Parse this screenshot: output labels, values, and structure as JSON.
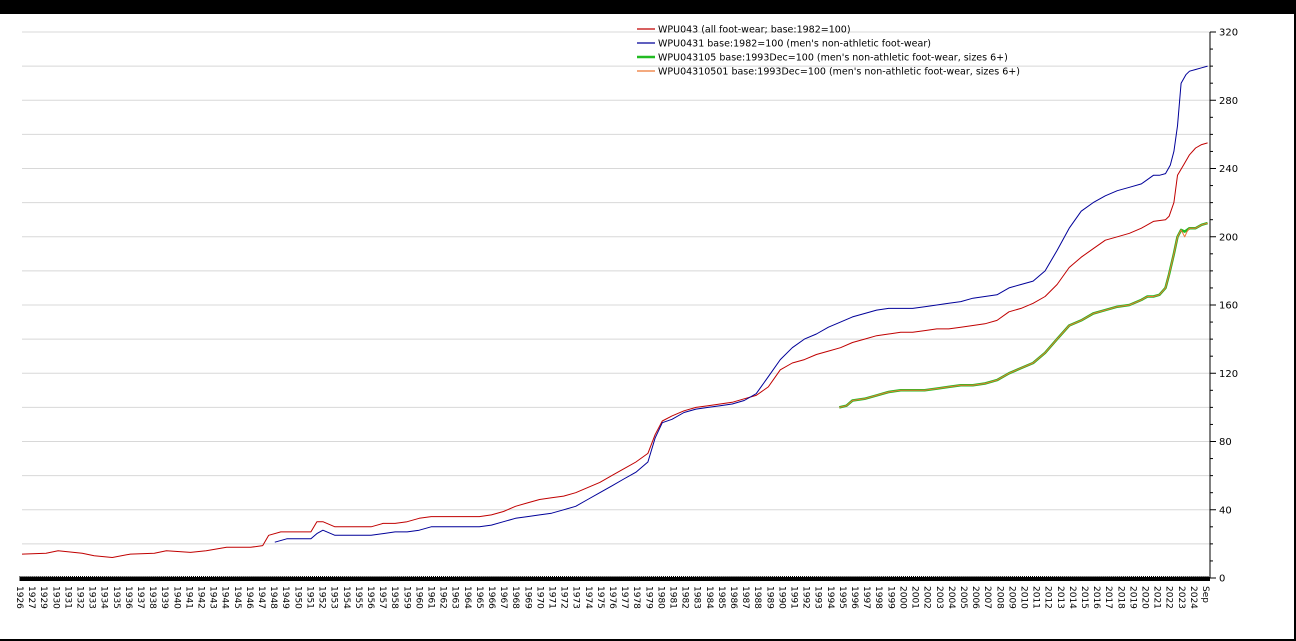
{
  "chart_data": {
    "type": "line",
    "title": "",
    "xlabel": "",
    "ylabel": "",
    "ylim": [
      0,
      320
    ],
    "xlim": [
      1926.0,
      2024.7
    ],
    "grid": true,
    "legend_position": "top-center",
    "y_ticks": [
      0,
      40,
      80,
      120,
      160,
      200,
      240,
      280,
      320
    ],
    "x_tick_labels": [
      "1926",
      "1927",
      "1929",
      "1930",
      "1931",
      "1932",
      "1933",
      "1934",
      "1935",
      "1936",
      "1937",
      "1938",
      "1939",
      "1940",
      "1941",
      "1942",
      "1943",
      "1944",
      "1945",
      "1946",
      "1947",
      "1948",
      "1949",
      "1950",
      "1951",
      "1952",
      "1953",
      "1954",
      "1955",
      "1956",
      "1957",
      "1958",
      "1959",
      "1960",
      "1961",
      "1962",
      "1963",
      "1964",
      "1965",
      "1966",
      "1967",
      "1968",
      "1969",
      "1970",
      "1971",
      "1972",
      "1973",
      "1974",
      "1975",
      "1976",
      "1977",
      "1978",
      "1979",
      "1980",
      "1981",
      "1982",
      "1983",
      "1984",
      "1985",
      "1986",
      "1987",
      "1988",
      "1989",
      "1990",
      "1991",
      "1992",
      "1993",
      "1994",
      "1995",
      "1996",
      "1997",
      "1998",
      "1999",
      "2000",
      "2001",
      "2002",
      "2003",
      "2004",
      "2005",
      "2006",
      "2007",
      "2008",
      "2009",
      "2010",
      "2011",
      "2012",
      "2013",
      "2014",
      "2015",
      "2016",
      "2017",
      "2018",
      "2019",
      "2020",
      "2021",
      "2022",
      "2023",
      "2024",
      "Sep"
    ],
    "series": [
      {
        "name": "WPU043 (all foot-wear; base:1982=100)",
        "color": "#c00000",
        "width": 1,
        "x": [
          1926,
          1928,
          1929,
          1931,
          1932,
          1933.5,
          1935,
          1937,
          1938,
          1940,
          1941.3,
          1943,
          1945,
          1946,
          1946.5,
          1947.5,
          1948,
          1949,
          1950,
          1950.5,
          1951,
          1952,
          1953,
          1954,
          1955,
          1956,
          1957,
          1958,
          1959,
          1960,
          1961,
          1962,
          1963,
          1964,
          1965,
          1966,
          1967,
          1968,
          1969,
          1970,
          1971,
          1972,
          1973,
          1974,
          1975,
          1976,
          1977,
          1978,
          1978.6,
          1979.2,
          1980,
          1981,
          1982,
          1983,
          1984,
          1985,
          1986,
          1987,
          1988,
          1989,
          1990,
          1991,
          1992,
          1993,
          1994,
          1995,
          1996,
          1997,
          1998,
          1999,
          2000,
          2001,
          2002,
          2003,
          2004,
          2005,
          2006,
          2007,
          2008,
          2009,
          2010,
          2011,
          2012,
          2013,
          2014,
          2015,
          2016,
          2017,
          2018,
          2019,
          2020,
          2021,
          2021.3,
          2021.7,
          2022,
          2022.5,
          2023,
          2023.5,
          2024,
          2024.5
        ],
        "y": [
          14,
          14.5,
          16,
          14.5,
          13,
          12,
          14,
          14.5,
          16,
          15,
          16,
          18,
          18,
          19,
          25,
          27,
          27,
          27,
          27,
          33,
          33,
          30,
          30,
          30,
          30,
          32,
          32,
          33,
          35,
          36,
          36,
          36,
          36,
          36,
          37,
          39,
          42,
          44,
          46,
          47,
          48,
          50,
          53,
          56,
          60,
          64,
          68,
          73,
          84,
          92,
          95,
          98,
          100,
          101,
          102,
          103,
          105,
          107,
          112,
          122,
          126,
          128,
          131,
          133,
          135,
          138,
          140,
          142,
          143,
          144,
          144,
          145,
          146,
          146,
          147,
          148,
          149,
          151,
          156,
          158,
          161,
          165,
          172,
          182,
          188,
          193,
          198,
          200,
          202,
          205,
          209,
          210,
          212,
          220,
          236,
          242,
          248,
          252,
          254,
          255
        ]
      },
      {
        "name": "WPU0431 base:1982=100 (men's non-athletic foot-wear)",
        "color": "#000099",
        "width": 1,
        "x": [
          1947,
          1948,
          1949,
          1950,
          1950.5,
          1951,
          1952,
          1953,
          1954,
          1955,
          1956,
          1957,
          1958,
          1959,
          1960,
          1961,
          1962,
          1963,
          1964,
          1965,
          1966,
          1967,
          1968,
          1969,
          1970,
          1971,
          1972,
          1973,
          1974,
          1975,
          1976,
          1977,
          1978,
          1978.6,
          1979.2,
          1980,
          1981,
          1982,
          1983,
          1984,
          1985,
          1986,
          1987,
          1988,
          1989,
          1990,
          1991,
          1992,
          1993,
          1994,
          1995,
          1996,
          1997,
          1998,
          1999,
          2000,
          2001,
          2002,
          2003,
          2004,
          2005,
          2006,
          2007,
          2008,
          2009,
          2010,
          2011,
          2012,
          2013,
          2014,
          2015,
          2016,
          2017,
          2018,
          2019,
          2020,
          2020.5,
          2021,
          2021.4,
          2021.7,
          2022,
          2022.3,
          2022.7,
          2023,
          2023.5,
          2024,
          2024.5
        ],
        "y": [
          21,
          23,
          23,
          23,
          26,
          28,
          25,
          25,
          25,
          25,
          26,
          27,
          27,
          28,
          30,
          30,
          30,
          30,
          30,
          31,
          33,
          35,
          36,
          37,
          38,
          40,
          42,
          46,
          50,
          54,
          58,
          62,
          68,
          82,
          91,
          93,
          97,
          99,
          100,
          101,
          102,
          104,
          108,
          118,
          128,
          135,
          140,
          143,
          147,
          150,
          153,
          155,
          157,
          158,
          158,
          158,
          159,
          160,
          161,
          162,
          164,
          165,
          166,
          170,
          172,
          174,
          180,
          192,
          205,
          215,
          220,
          224,
          227,
          229,
          231,
          236,
          236,
          237,
          242,
          250,
          265,
          290,
          295,
          297,
          298,
          299,
          300
        ]
      },
      {
        "name": "WPU043105 base:1993Dec=100 (men's non-athletic foot-wear, sizes 6+)",
        "color": "#22bb22",
        "width": 2.5,
        "x": [
          1993.9,
          1994.5,
          1995,
          1996,
          1997,
          1998,
          1999,
          2000,
          2001,
          2002,
          2003,
          2004,
          2005,
          2006,
          2007,
          2008,
          2009,
          2010,
          2011,
          2012,
          2013,
          2014,
          2015,
          2016,
          2017,
          2018,
          2019,
          2019.5,
          2020,
          2020.5,
          2021,
          2021.3,
          2021.7,
          2022,
          2022.3,
          2022.6,
          2023,
          2023.5,
          2024,
          2024.5
        ],
        "y": [
          100,
          101,
          104,
          105,
          107,
          109,
          110,
          110,
          110,
          111,
          112,
          113,
          113,
          114,
          116,
          120,
          123,
          126,
          132,
          140,
          148,
          151,
          155,
          157,
          159,
          160,
          163,
          165,
          165,
          166,
          170,
          178,
          190,
          200,
          204,
          203,
          205,
          205,
          207,
          208
        ]
      },
      {
        "name": "WPU04310501 base:1993Dec=100 (men's non-athletic foot-wear, sizes 6+)",
        "color": "#ee7733",
        "width": 1,
        "x": [
          1993.9,
          1994.5,
          1995,
          1996,
          1997,
          1998,
          1999,
          2000,
          2001,
          2002,
          2003,
          2004,
          2005,
          2006,
          2007,
          2008,
          2009,
          2010,
          2011,
          2012,
          2013,
          2014,
          2015,
          2016,
          2017,
          2018,
          2019,
          2019.5,
          2020,
          2020.5,
          2021,
          2021.3,
          2021.7,
          2022,
          2022.3,
          2022.6,
          2022.8,
          2023,
          2023.5,
          2024,
          2024.5
        ],
        "y": [
          100,
          101,
          104,
          105,
          107,
          109,
          110,
          110,
          110,
          111,
          112,
          113,
          113,
          114,
          116,
          120,
          123,
          126,
          132,
          140,
          148,
          151,
          155,
          157,
          159,
          160,
          163,
          165,
          165,
          166,
          170,
          178,
          190,
          200,
          204,
          200,
          203,
          205,
          205,
          207,
          208
        ]
      }
    ]
  }
}
